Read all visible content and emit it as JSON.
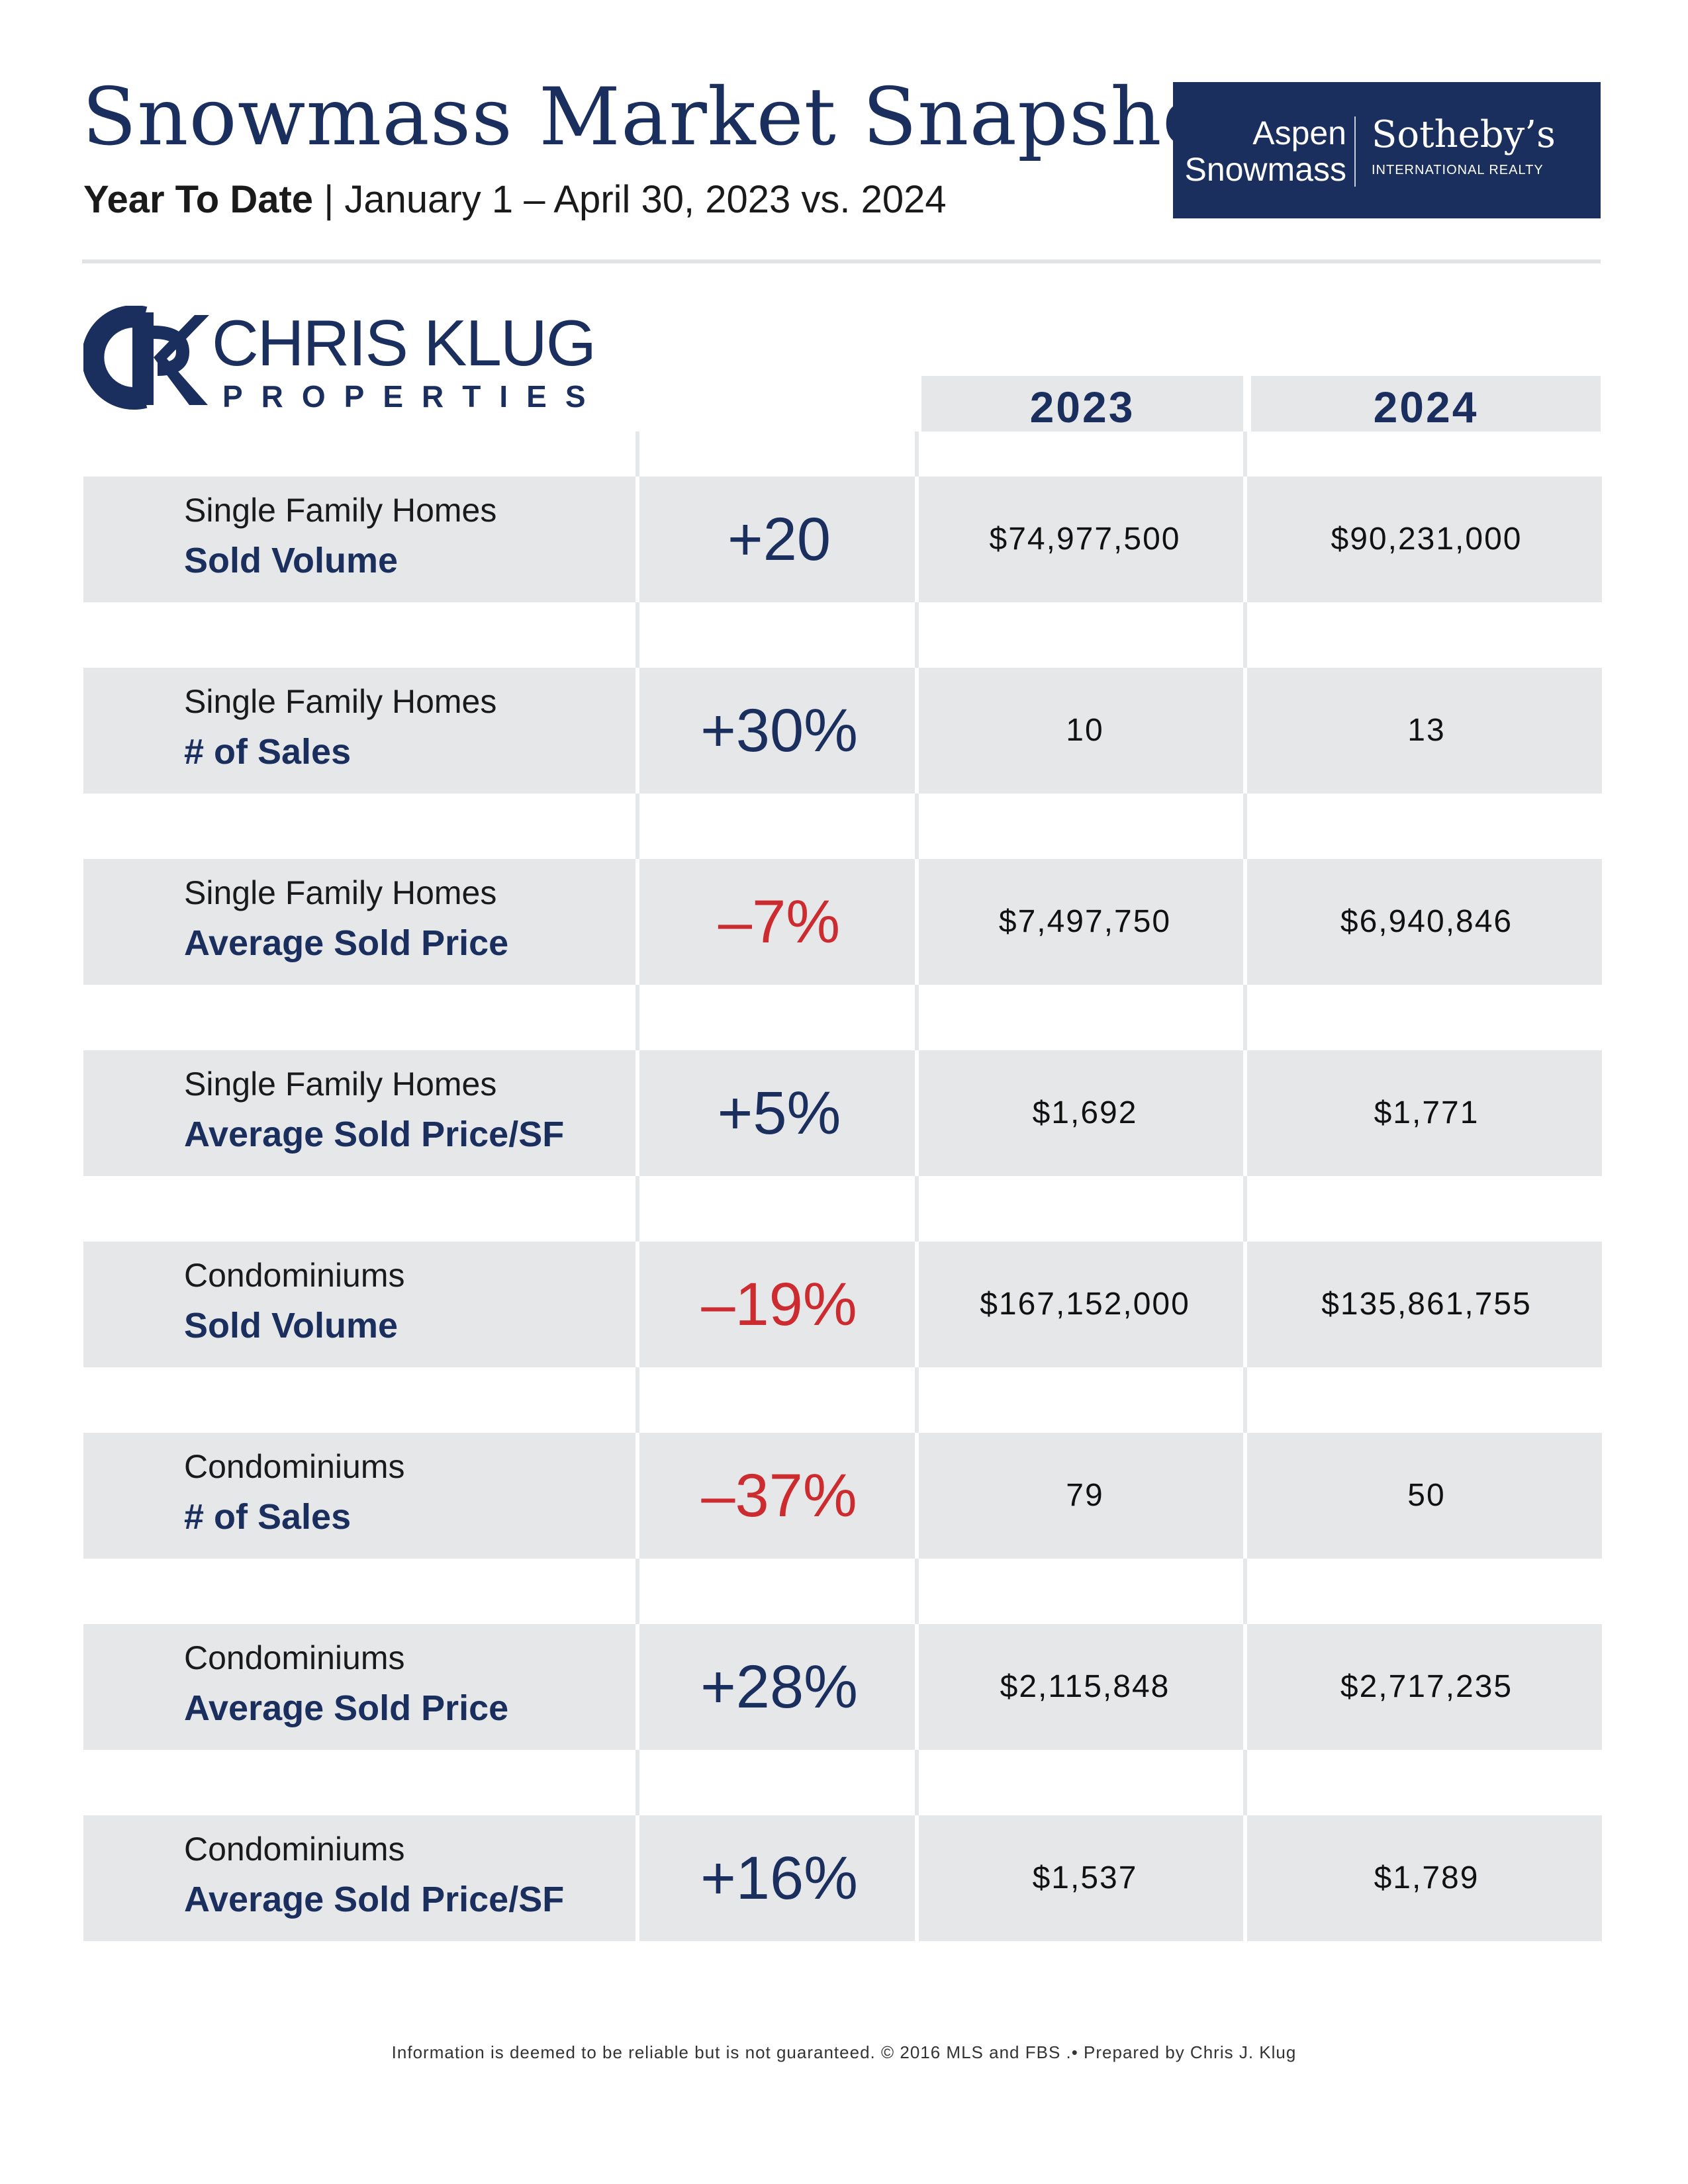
{
  "header": {
    "title": "Snowmass Market Snapshot",
    "subtitle_bold": "Year To Date",
    "subtitle_sep": " | ",
    "subtitle_range": "January 1 – April 30, 2023 vs. 2024"
  },
  "brand": {
    "left_line1": "Aspen",
    "left_line2": "Snowmass",
    "name": "Sotheby’s",
    "tagline": "INTERNATIONAL REALTY"
  },
  "logo": {
    "monogram": "CK",
    "name": "CHRIS KLUG",
    "sub": "PROPERTIES"
  },
  "columns": {
    "year_a": "2023",
    "year_b": "2024"
  },
  "rows": [
    {
      "category": "Single Family Homes",
      "metric": "Sold Volume",
      "change": "+20",
      "v2023": "$74,977,500",
      "v2024": "$90,231,000"
    },
    {
      "category": "Single Family Homes",
      "metric": "# of Sales",
      "change": "+30%",
      "v2023": "10",
      "v2024": "13"
    },
    {
      "category": "Single Family Homes",
      "metric": "Average Sold Price",
      "change": "–7%",
      "v2023": "$7,497,750",
      "v2024": "$6,940,846"
    },
    {
      "category": "Single Family Homes",
      "metric": "Average Sold Price/SF",
      "change": "+5%",
      "v2023": "$1,692",
      "v2024": "$1,771"
    },
    {
      "category": "Condominiums",
      "metric": "Sold Volume",
      "change": "–19%",
      "v2023": "$167,152,000",
      "v2024": "$135,861,755"
    },
    {
      "category": "Condominiums",
      "metric": "# of Sales",
      "change": "–37%",
      "v2023": "79",
      "v2024": "50"
    },
    {
      "category": "Condominiums",
      "metric": "Average Sold Price",
      "change": "+28%",
      "v2023": "$2,115,848",
      "v2024": "$2,717,235"
    },
    {
      "category": "Condominiums",
      "metric": "Average Sold Price/SF",
      "change": "+16%",
      "v2023": "$1,537",
      "v2024": "$1,789"
    }
  ],
  "colors": {
    "navy": "#1b2f5e",
    "negative": "#cc2b2f",
    "row_bg": "#e6e7e8"
  },
  "footer": "Information is deemed to be reliable but is not guaranteed. © 2016 MLS and FBS .• Prepared by Chris J. Klug"
}
